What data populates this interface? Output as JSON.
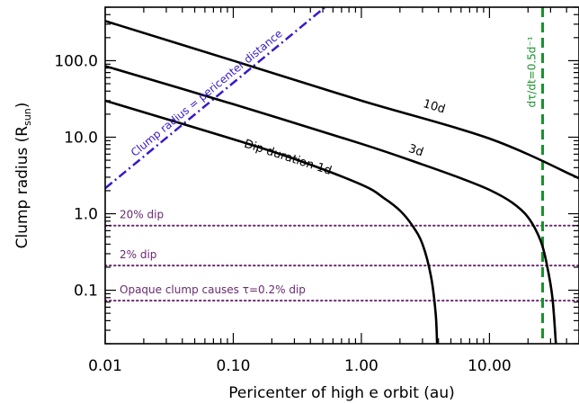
{
  "chart_data": {
    "type": "line",
    "xlabel": "Pericenter of high e orbit (au)",
    "ylabel": "Clump radius (R",
    "ylabel_sub": "sun",
    "ylabel_close": ")",
    "xscale": "log",
    "yscale": "log",
    "xlim": [
      0.01,
      50
    ],
    "ylim": [
      0.02,
      500
    ],
    "grid": false,
    "xticks": [
      {
        "value": 0.01,
        "label": "0.01"
      },
      {
        "value": 0.1,
        "label": "0.10"
      },
      {
        "value": 1,
        "label": "1.00"
      },
      {
        "value": 10,
        "label": "10.00"
      }
    ],
    "yticks": [
      {
        "value": 0.1,
        "label": "0.1"
      },
      {
        "value": 1,
        "label": "1.0"
      },
      {
        "value": 10,
        "label": "10.0"
      },
      {
        "value": 100,
        "label": "100.0"
      }
    ],
    "series": [
      {
        "name": "Dip duration 1d",
        "label_x": 0.12,
        "label_y": 7.5,
        "color": "#000000",
        "points": [
          [
            0.01,
            30
          ],
          [
            0.1,
            9.4
          ],
          [
            0.3,
            5.2
          ],
          [
            1,
            2.4
          ],
          [
            1.5,
            1.6
          ],
          [
            2,
            1.1
          ],
          [
            2.5,
            0.7
          ],
          [
            3,
            0.4
          ],
          [
            3.5,
            0.15
          ],
          [
            3.8,
            0.05
          ],
          [
            3.9,
            0.02
          ]
        ]
      },
      {
        "name": "3d",
        "label_x": 2.3,
        "label_y": 6.5,
        "color": "#000000",
        "points": [
          [
            0.01,
            85
          ],
          [
            0.1,
            27
          ],
          [
            1,
            8.2
          ],
          [
            3,
            4.4
          ],
          [
            6,
            2.9
          ],
          [
            10,
            2.05
          ],
          [
            15,
            1.4
          ],
          [
            20,
            0.9
          ],
          [
            25,
            0.45
          ],
          [
            28,
            0.22
          ],
          [
            31,
            0.08
          ],
          [
            33,
            0.02
          ]
        ]
      },
      {
        "name": "10d",
        "label_x": 3.0,
        "label_y": 25,
        "color": "#000000",
        "points": [
          [
            0.01,
            330
          ],
          [
            0.1,
            100
          ],
          [
            1,
            30
          ],
          [
            10,
            9.6
          ],
          [
            50,
            2.9
          ]
        ]
      }
    ],
    "reference_lines": [
      {
        "name": "Clump radius = pericenter distance",
        "color": "#3a18c8",
        "style": "dash-dot",
        "points": [
          [
            0.01,
            2.15
          ],
          [
            0.52,
            500
          ]
        ],
        "label_x": 0.017,
        "label_y": 5.5
      },
      {
        "name": "dτ/dt=0.5d⁻¹",
        "color": "#17912a",
        "style": "dashed",
        "x": 26
      }
    ],
    "threshold_lines": [
      {
        "name": "20% dip",
        "y": 0.7,
        "color": "#6a2a6f"
      },
      {
        "name": "2% dip",
        "y": 0.21,
        "color": "#6a2a6f"
      },
      {
        "name": "Opaque clump causes τ=0.2% dip",
        "y": 0.073,
        "color": "#6a2a6f"
      }
    ]
  }
}
